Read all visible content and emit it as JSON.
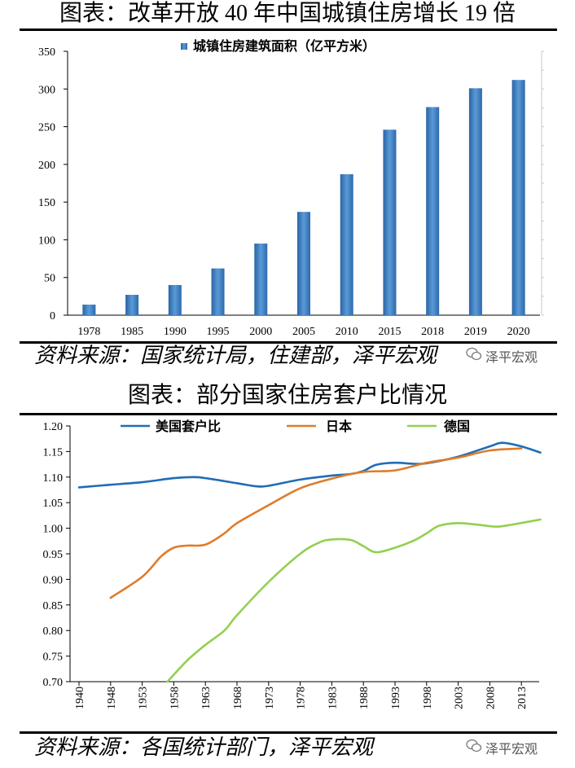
{
  "figures": [
    {
      "source": "资料来源：国家统计局，住建部，泽平宏观",
      "watermark": "泽平宏观"
    },
    {
      "source": "资料来源：各国统计部门，泽平宏观",
      "watermark": "泽平宏观"
    }
  ],
  "chart_data": [
    {
      "type": "bar",
      "title": "图表：改革开放 40 年中国城镇住房增长 19 倍",
      "categories": [
        "1978",
        "1985",
        "1990",
        "1995",
        "2000",
        "2005",
        "2010",
        "2015",
        "2018",
        "2019",
        "2020"
      ],
      "series": [
        {
          "name": "城镇住房建筑面积（亿平方米）",
          "values": [
            14,
            27,
            40,
            62,
            95,
            137,
            187,
            246,
            276,
            301,
            312
          ],
          "color": "#5a9ad6"
        }
      ],
      "ylim": [
        0,
        350
      ],
      "yticks": [
        "0",
        "50",
        "100",
        "150",
        "200",
        "250",
        "300",
        "350"
      ],
      "xlabel": "",
      "ylabel": "",
      "legend": "top-center",
      "grid": false
    },
    {
      "type": "line",
      "title": "图表：部分国家住房套户比情况",
      "x_ticks": [
        "1940",
        "1948",
        "1953",
        "1958",
        "1963",
        "1968",
        "1973",
        "1978",
        "1983",
        "1988",
        "1993",
        "1998",
        "2003",
        "2008",
        "2013"
      ],
      "ylim": [
        0.7,
        1.2
      ],
      "yticks": [
        "0.70",
        "0.75",
        "0.80",
        "0.85",
        "0.90",
        "0.95",
        "1.00",
        "1.05",
        "1.10",
        "1.15",
        "1.20"
      ],
      "xlabel": "",
      "ylabel": "",
      "legend": "top",
      "grid": false,
      "series": [
        {
          "name": "美国套户比",
          "color": "#1f6db5",
          "points": [
            [
              1940,
              1.08
            ],
            [
              1948,
              1.085
            ],
            [
              1953,
              1.09
            ],
            [
              1958,
              1.098
            ],
            [
              1961,
              1.1
            ],
            [
              1963,
              1.098
            ],
            [
              1968,
              1.088
            ],
            [
              1971,
              1.082
            ],
            [
              1973,
              1.083
            ],
            [
              1978,
              1.095
            ],
            [
              1983,
              1.103
            ],
            [
              1986,
              1.106
            ],
            [
              1988,
              1.112
            ],
            [
              1990,
              1.124
            ],
            [
              1993,
              1.128
            ],
            [
              1996,
              1.126
            ],
            [
              1998,
              1.127
            ],
            [
              2003,
              1.14
            ],
            [
              2008,
              1.16
            ],
            [
              2010,
              1.167
            ],
            [
              2013,
              1.16
            ],
            [
              2016,
              1.148
            ]
          ]
        },
        {
          "name": "日本",
          "color": "#e07b2a",
          "points": [
            [
              1948,
              0.864
            ],
            [
              1953,
              0.905
            ],
            [
              1956,
              0.945
            ],
            [
              1958,
              0.962
            ],
            [
              1960,
              0.966
            ],
            [
              1963,
              0.968
            ],
            [
              1966,
              0.99
            ],
            [
              1968,
              1.01
            ],
            [
              1973,
              1.045
            ],
            [
              1978,
              1.078
            ],
            [
              1983,
              1.097
            ],
            [
              1988,
              1.11
            ],
            [
              1993,
              1.113
            ],
            [
              1998,
              1.128
            ],
            [
              2003,
              1.138
            ],
            [
              2008,
              1.152
            ],
            [
              2013,
              1.156
            ]
          ]
        },
        {
          "name": "德国",
          "color": "#92d050",
          "points": [
            [
              1957,
              0.7
            ],
            [
              1960,
              0.74
            ],
            [
              1963,
              0.772
            ],
            [
              1966,
              0.8
            ],
            [
              1968,
              0.83
            ],
            [
              1973,
              0.895
            ],
            [
              1978,
              0.95
            ],
            [
              1981,
              0.972
            ],
            [
              1983,
              0.978
            ],
            [
              1986,
              0.977
            ],
            [
              1988,
              0.965
            ],
            [
              1990,
              0.953
            ],
            [
              1993,
              0.962
            ],
            [
              1996,
              0.976
            ],
            [
              1998,
              0.99
            ],
            [
              2000,
              1.005
            ],
            [
              2003,
              1.01
            ],
            [
              2006,
              1.007
            ],
            [
              2009,
              1.003
            ],
            [
              2011,
              1.006
            ],
            [
              2016,
              1.017
            ]
          ]
        }
      ]
    }
  ]
}
